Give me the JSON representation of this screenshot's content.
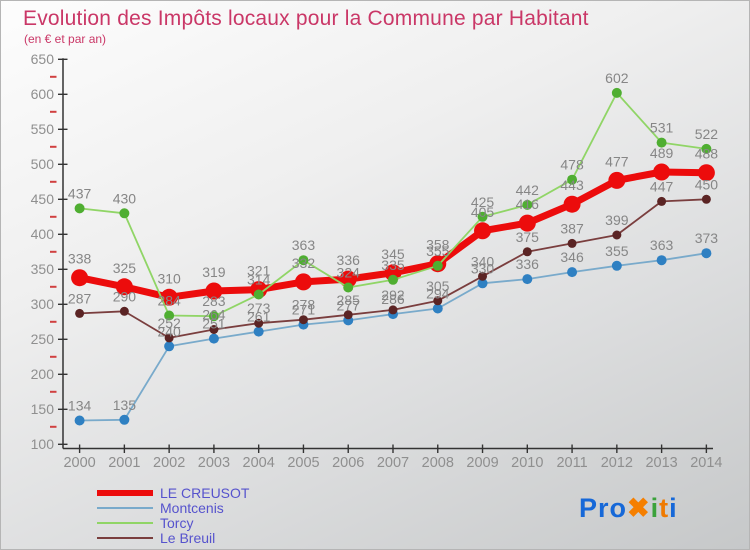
{
  "header": {
    "title": "Evolution des Impôts locaux pour la Commune par Habitant",
    "subtitle": "(en € et par an)"
  },
  "chart_data": {
    "type": "line",
    "title": "Evolution des Impôts locaux pour la Commune par Habitant",
    "subtitle": "(en € et par an)",
    "x": [
      2000,
      2001,
      2002,
      2003,
      2004,
      2005,
      2006,
      2007,
      2008,
      2009,
      2010,
      2011,
      2012,
      2013,
      2014
    ],
    "ylim": [
      100,
      650
    ],
    "ytick_step": 50,
    "yminor_step": 25,
    "grid": false,
    "legend_position": "bottom-left",
    "label_color": "#868686",
    "tick_color": "#8f8f8f",
    "axis_color": "#333333",
    "minor_tick_color": "#d04040",
    "series": [
      {
        "name": "LE CREUSOT",
        "color": "#ec0c0c",
        "dot_color": "#ec0c0c",
        "line_width": 7,
        "dot_radius": 8.5,
        "label_offset": 14,
        "values": [
          338,
          325,
          310,
          319,
          321,
          332,
          336,
          345,
          358,
          405,
          416,
          443,
          477,
          489,
          488
        ]
      },
      {
        "name": "Montcenis",
        "color": "#79aacb",
        "dot_color": "#2f80c2",
        "line_width": 1.8,
        "dot_radius": 5,
        "label_offset": 10,
        "values": [
          134,
          135,
          240,
          251,
          261,
          271,
          277,
          286,
          294,
          330,
          336,
          346,
          355,
          363,
          373
        ]
      },
      {
        "name": "Torcy",
        "color": "#90d566",
        "dot_color": "#4fae31",
        "line_width": 1.8,
        "dot_radius": 5,
        "label_offset": 10,
        "values": [
          437,
          430,
          284,
          283,
          314,
          363,
          324,
          335,
          355,
          425,
          442,
          478,
          602,
          531,
          522
        ]
      },
      {
        "name": "Le Breuil",
        "color": "#7a3e3e",
        "dot_color": "#5b2424",
        "line_width": 1.8,
        "dot_radius": 4.5,
        "label_offset": 10,
        "values": [
          287,
          290,
          252,
          264,
          273,
          278,
          285,
          292,
          305,
          340,
          375,
          387,
          399,
          447,
          450
        ]
      }
    ]
  },
  "logo": {
    "text": "Proxiti",
    "letters": [
      {
        "ch": "P",
        "color": "#1668d8"
      },
      {
        "ch": "r",
        "color": "#1668d8"
      },
      {
        "ch": "o",
        "color": "#1668d8"
      },
      {
        "ch": "✖",
        "color": "#f57f00"
      },
      {
        "ch": "i",
        "color": "#3ba23b"
      },
      {
        "ch": "t",
        "color": "#ef7a00"
      },
      {
        "ch": "i",
        "color": "#1668d8"
      }
    ]
  }
}
